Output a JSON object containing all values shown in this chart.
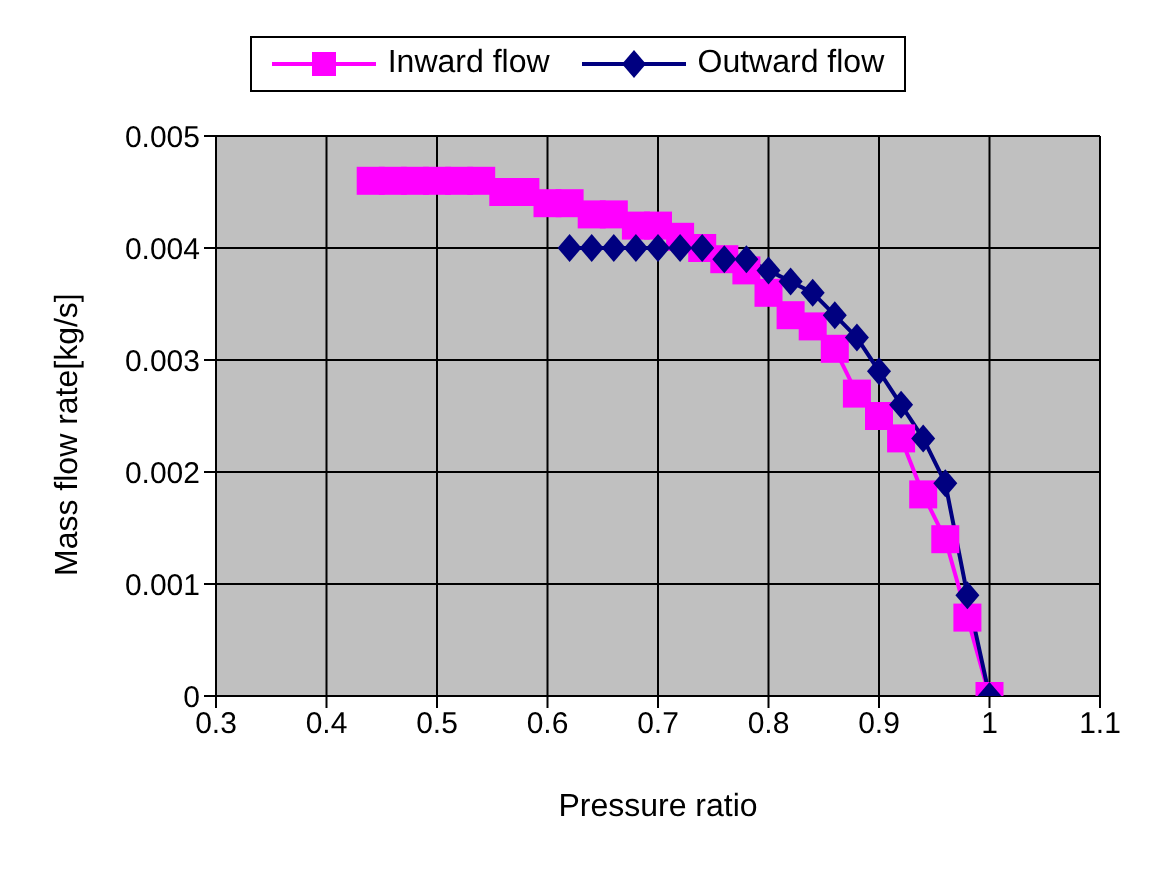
{
  "chart_data": {
    "type": "line",
    "xlabel": "Pressure ratio",
    "ylabel": "Mass flow rate[kg/s]",
    "xlim": [
      0.3,
      1.1
    ],
    "xticks": [
      0.3,
      0.4,
      0.5,
      0.6,
      0.7,
      0.8,
      0.9,
      1,
      1.1
    ],
    "ylim": [
      0,
      0.005
    ],
    "yticks": [
      0,
      0.001,
      0.002,
      0.003,
      0.004,
      0.005
    ],
    "grid": true,
    "legend": "top",
    "series": [
      {
        "name": "Inward flow",
        "color": "#ff00ff",
        "marker": "square",
        "x": [
          0.44,
          0.46,
          0.48,
          0.5,
          0.52,
          0.54,
          0.56,
          0.58,
          0.6,
          0.62,
          0.64,
          0.66,
          0.68,
          0.7,
          0.72,
          0.74,
          0.76,
          0.78,
          0.8,
          0.82,
          0.84,
          0.86,
          0.88,
          0.9,
          0.92,
          0.94,
          0.96,
          0.98,
          1.0
        ],
        "values": [
          0.0046,
          0.0046,
          0.0046,
          0.0046,
          0.0046,
          0.0046,
          0.0045,
          0.0045,
          0.0044,
          0.0044,
          0.0043,
          0.0043,
          0.0042,
          0.0042,
          0.0041,
          0.004,
          0.0039,
          0.0038,
          0.0036,
          0.0034,
          0.0033,
          0.0031,
          0.0027,
          0.0025,
          0.0023,
          0.0018,
          0.0014,
          0.0007,
          0
        ]
      },
      {
        "name": "Outward flow",
        "color": "#000080",
        "marker": "diamond",
        "x": [
          0.62,
          0.64,
          0.66,
          0.68,
          0.7,
          0.72,
          0.74,
          0.76,
          0.78,
          0.8,
          0.82,
          0.84,
          0.86,
          0.88,
          0.9,
          0.92,
          0.94,
          0.96,
          0.98,
          1.0
        ],
        "values": [
          0.004,
          0.004,
          0.004,
          0.004,
          0.004,
          0.004,
          0.004,
          0.0039,
          0.0039,
          0.0038,
          0.0037,
          0.0036,
          0.0034,
          0.0032,
          0.0029,
          0.0026,
          0.0023,
          0.0019,
          0.0009,
          0
        ]
      }
    ]
  }
}
